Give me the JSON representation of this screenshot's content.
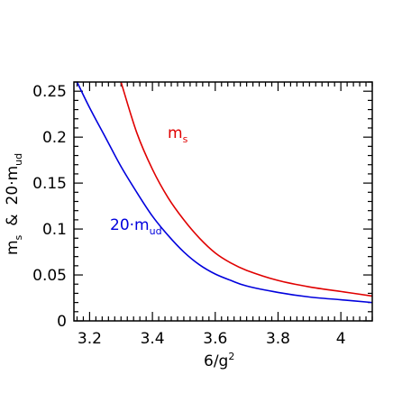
{
  "chart_data": {
    "type": "line",
    "xlim": [
      3.15,
      4.1
    ],
    "ylim": [
      0,
      0.26
    ],
    "x_ticks": [
      3.2,
      3.4,
      3.6,
      3.8,
      4
    ],
    "x_tick_labels": [
      "3.2",
      "3.4",
      "3.6",
      "3.8",
      "4"
    ],
    "y_ticks": [
      0,
      0.05,
      0.1,
      0.15,
      0.2,
      0.25
    ],
    "y_tick_labels": [
      "0",
      "0.05",
      "0.1",
      "0.15",
      "0.2",
      "0.25"
    ],
    "xlabel": {
      "base": "6/g",
      "sup": "2"
    },
    "ylabel": {
      "m": "m",
      "s": "s",
      "amp": "&",
      "coef": "20·m",
      "ud": "ud"
    },
    "grid": false,
    "series": [
      {
        "label": {
          "base": "m",
          "sub": "s"
        },
        "color": "#e00000",
        "x": [
          3.3,
          3.35,
          3.4,
          3.45,
          3.5,
          3.55,
          3.6,
          3.65,
          3.7,
          3.8,
          3.9,
          4.0,
          4.1
        ],
        "y": [
          0.26,
          0.205,
          0.165,
          0.134,
          0.11,
          0.09,
          0.074,
          0.063,
          0.055,
          0.044,
          0.037,
          0.032,
          0.027
        ]
      },
      {
        "label": {
          "base": "20·m",
          "sub": "ud"
        },
        "color": "#0000dd",
        "x": [
          3.16,
          3.2,
          3.25,
          3.3,
          3.35,
          3.4,
          3.45,
          3.5,
          3.55,
          3.6,
          3.65,
          3.7,
          3.8,
          3.9,
          4.0,
          4.1
        ],
        "y": [
          0.26,
          0.232,
          0.2,
          0.168,
          0.14,
          0.114,
          0.093,
          0.075,
          0.061,
          0.051,
          0.044,
          0.038,
          0.031,
          0.026,
          0.023,
          0.02
        ]
      }
    ]
  }
}
